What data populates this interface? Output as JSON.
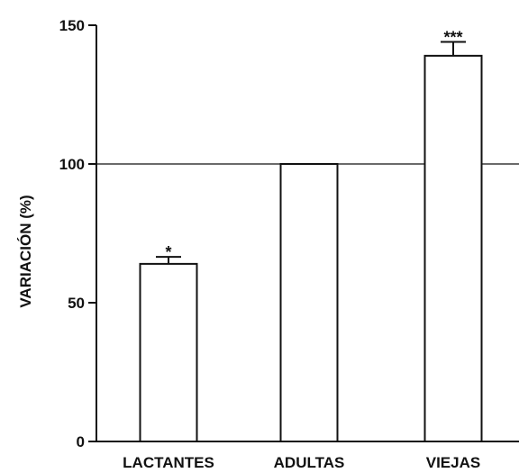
{
  "chart_data": {
    "type": "bar",
    "title": "",
    "xlabel": "",
    "ylabel": "VARIACIÓN (%)",
    "ylim": [
      0,
      150
    ],
    "yticks": [
      0,
      50,
      100,
      150
    ],
    "categories": [
      "LACTANTES",
      "ADULTAS",
      "VIEJAS"
    ],
    "values": [
      64,
      100,
      139
    ],
    "error_bars": [
      2.5,
      0,
      5
    ],
    "significance": [
      "*",
      "",
      "***"
    ],
    "reference_line": 100,
    "grid": false,
    "legend": "none",
    "colors": {
      "bar_fill": "#ffffff",
      "bar_stroke": "#111111",
      "axis": "#111111"
    }
  }
}
